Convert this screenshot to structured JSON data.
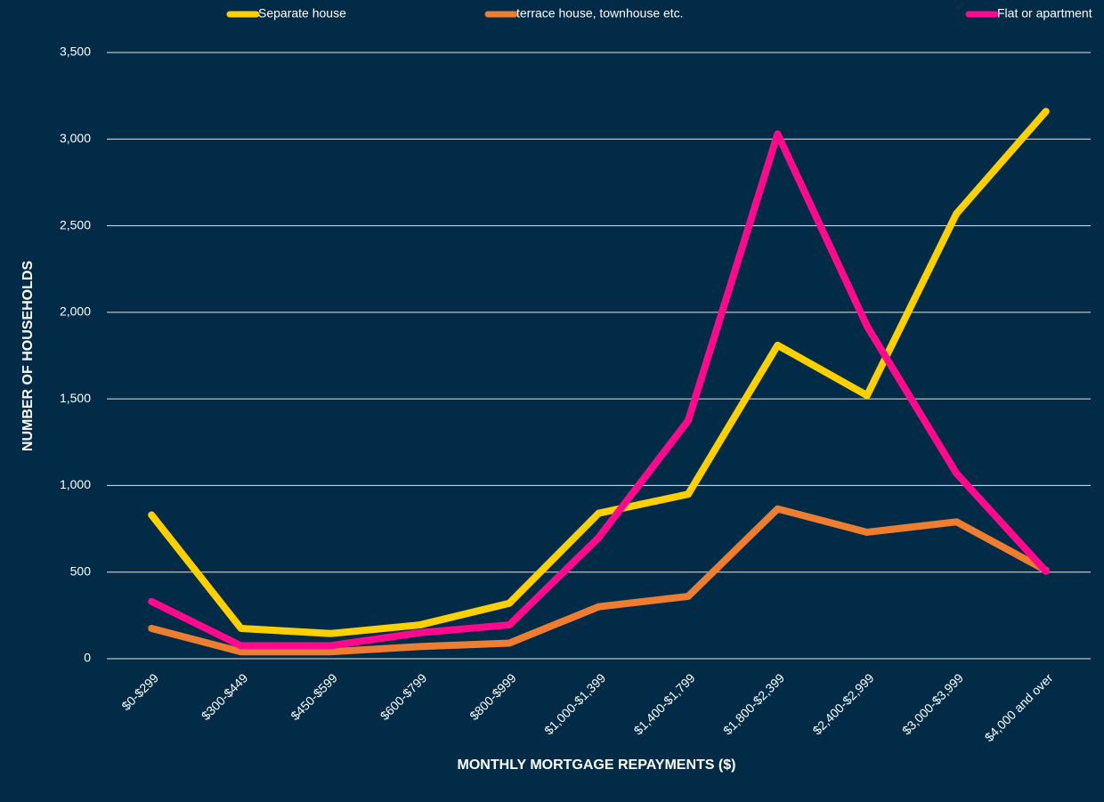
{
  "chart_data": {
    "type": "line",
    "xlabel": "MONTHLY MORTGAGE REPAYMENTS ($)",
    "ylabel": "NUMBER OF HOUSEHOLDS",
    "categories": [
      "$0-$299",
      "$300-$449",
      "$450-$599",
      "$600-$799",
      "$800-$999",
      "$1,000-$1,399",
      "$1,400-$1,799",
      "$1,800-$2,399",
      "$2,400-$2,999",
      "$3,000-$3,999",
      "$4,000 and over"
    ],
    "series": [
      {
        "name": "Separate house",
        "color": "#ffd000",
        "values": [
          830,
          175,
          145,
          195,
          320,
          840,
          950,
          1810,
          1520,
          2570,
          3160
        ]
      },
      {
        "name": "terrace house, townhouse etc.",
        "color": "#ed7d31",
        "values": [
          175,
          40,
          40,
          70,
          90,
          300,
          360,
          865,
          730,
          790,
          510
        ]
      },
      {
        "name": "Flat or apartment",
        "color": "#ff0a8c",
        "values": [
          330,
          75,
          75,
          150,
          195,
          700,
          1375,
          3030,
          1920,
          1070,
          505
        ]
      }
    ],
    "ylim": [
      0,
      3500
    ],
    "yticks": [
      0,
      {
        "value": 500,
        "label": "500"
      },
      {
        "value": 1000,
        "label": "1,000"
      },
      {
        "value": 1500,
        "label": "1,500"
      },
      {
        "value": 2000,
        "label": "2,000"
      },
      {
        "value": 2500,
        "label": "2,500"
      },
      {
        "value": 3000,
        "label": "3,000"
      },
      {
        "value": 3500,
        "label": "3,500"
      }
    ],
    "grid": true,
    "legend": "top"
  }
}
